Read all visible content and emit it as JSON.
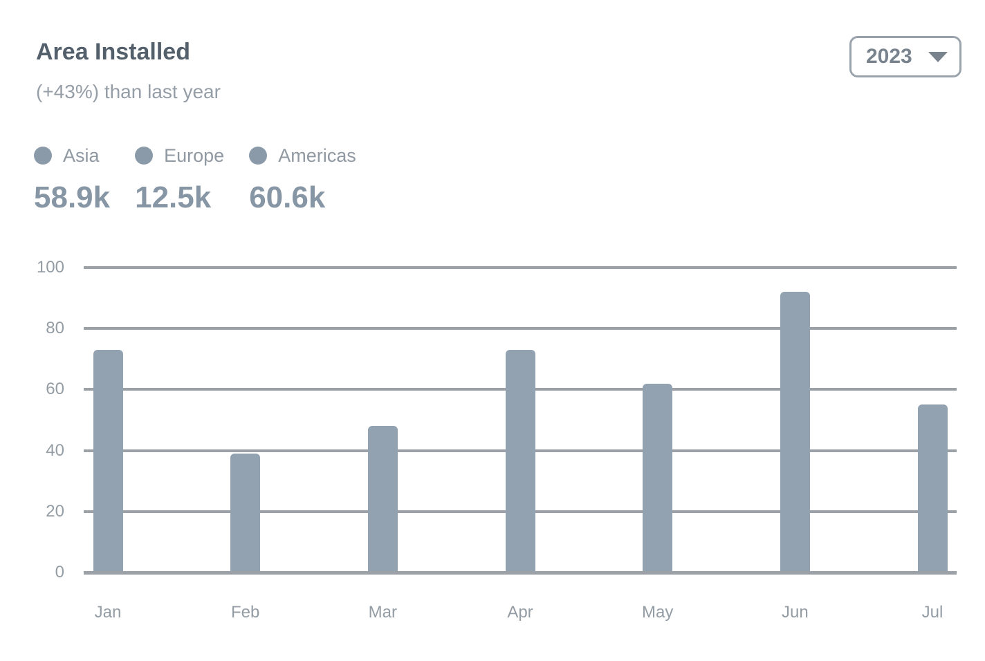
{
  "header": {
    "title": "Area Installed",
    "subtitle": "(+43%) than last year",
    "year_select": {
      "value": "2023"
    }
  },
  "legend": [
    {
      "label": "Asia",
      "value": "58.9k"
    },
    {
      "label": "Europe",
      "value": "12.5k"
    },
    {
      "label": "Americas",
      "value": "60.6k"
    }
  ],
  "chart_data": {
    "type": "bar",
    "title": "Area Installed",
    "categories": [
      "Jan",
      "Feb",
      "Mar",
      "Apr",
      "May",
      "Jun",
      "Jul"
    ],
    "series": [
      {
        "name": "Asia",
        "values": [
          73,
          39,
          48,
          73,
          62,
          92,
          55
        ]
      }
    ],
    "xlabel": "",
    "ylabel": "",
    "ylim": [
      0,
      100
    ],
    "yticks": [
      0,
      20,
      40,
      60,
      80,
      100
    ],
    "grid": true,
    "legend_position": "top-left"
  },
  "colors": {
    "bar": "#93a2b0",
    "grid": "#9ba1a7",
    "axis_label": "#949ca4"
  }
}
